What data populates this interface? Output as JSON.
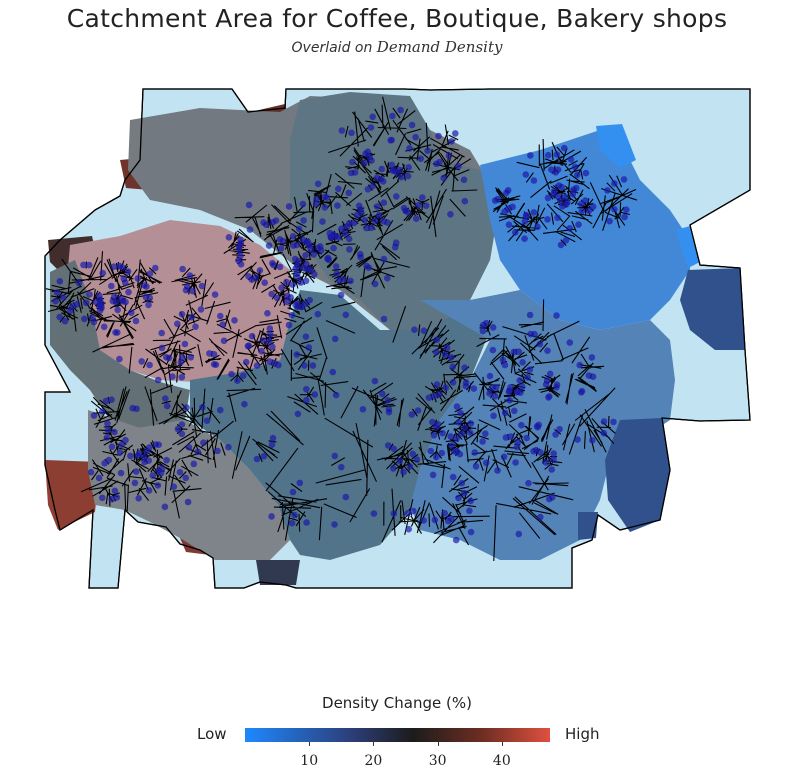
{
  "title": "Catchment Area for Coffee, Boutique, Bakery shops",
  "subtitle": {
    "lead": "Overlaid on",
    "metric": "Demand Density"
  },
  "legend": {
    "title": "Density Change (%)",
    "low_label": "Low",
    "high_label": "High",
    "ticks": [
      "10",
      "20",
      "30",
      "40"
    ],
    "tick_values": [
      10,
      20,
      30,
      40
    ],
    "range": [
      0,
      47.5
    ],
    "gradient_colors": [
      "#1e88ff",
      "#2c3e78",
      "#1c1c1c",
      "#6e2e22",
      "#e05040"
    ]
  },
  "colors": {
    "cell_fill": "#c2e4f2",
    "cell_border": "#000000",
    "store_point": "#1b1ba8",
    "density_low": "#2d8cf0",
    "density_mid_blue": "#3f6ea8",
    "density_dark": "#2a3a6a",
    "density_grey": "#6f747a",
    "density_pink": "#b58b92",
    "density_brown": "#7a2c22"
  }
}
